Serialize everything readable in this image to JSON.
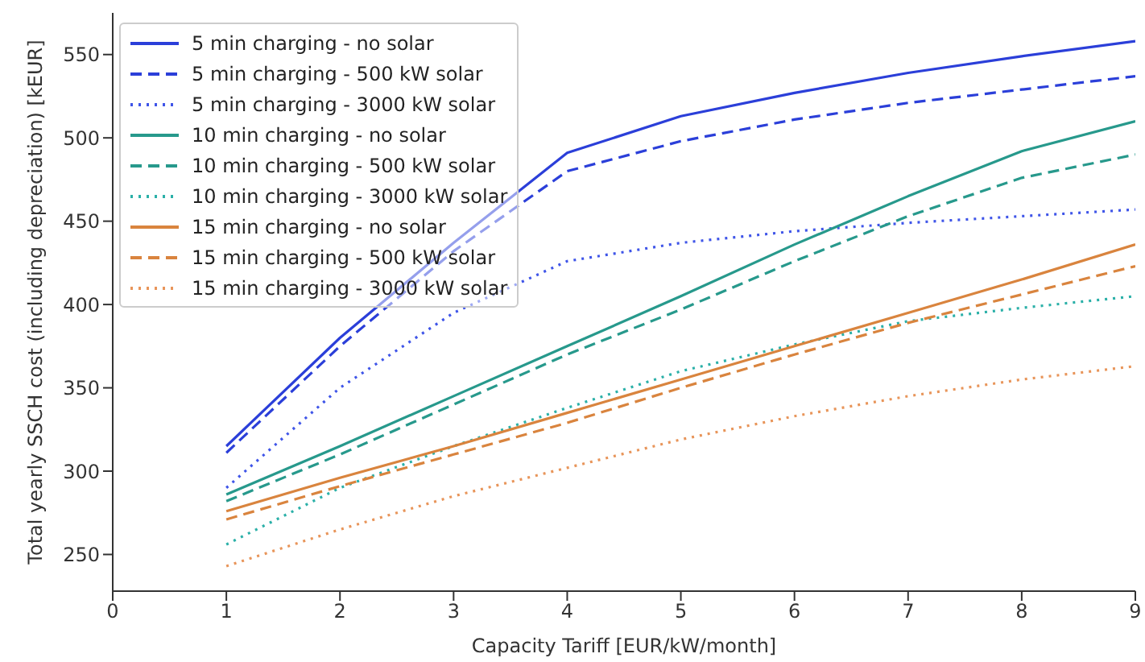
{
  "chart_data": {
    "type": "line",
    "xlabel": "Capacity Tariff [EUR/kW/month]",
    "ylabel": "Total yearly SSCH cost (including depreciation) [kEUR]",
    "x": [
      1,
      2,
      3,
      4,
      5,
      6,
      7,
      8,
      9
    ],
    "xlim": [
      0,
      9
    ],
    "xticks": [
      0,
      1,
      2,
      3,
      4,
      5,
      6,
      7,
      8,
      9
    ],
    "ylim": [
      228,
      575
    ],
    "yticks": [
      250,
      300,
      350,
      400,
      450,
      500,
      550
    ],
    "grid": false,
    "legend": "top left",
    "marker": "none",
    "series": [
      {
        "name": "5 min charging - no solar",
        "color": "#2b3fd9",
        "line_style": "solid",
        "values": [
          315,
          380,
          437,
          491,
          513,
          527,
          539,
          549,
          558
        ]
      },
      {
        "name": "5 min charging - 500 kW solar",
        "color": "#2b3fd9",
        "line_style": "dashed",
        "values": [
          311,
          375,
          432,
          480,
          498,
          511,
          521,
          529,
          537
        ]
      },
      {
        "name": "5 min charging - 3000 kW solar",
        "color": "#3f55e8",
        "line_style": "dotted",
        "values": [
          290,
          350,
          395,
          426,
          437,
          444,
          449,
          453,
          457
        ]
      },
      {
        "name": "10 min charging - no solar",
        "color": "#27998c",
        "line_style": "solid",
        "values": [
          286,
          315,
          345,
          375,
          405,
          436,
          465,
          492,
          510
        ]
      },
      {
        "name": "10 min charging - 500 kW solar",
        "color": "#27998c",
        "line_style": "dashed",
        "values": [
          282,
          310,
          340,
          370,
          397,
          426,
          453,
          476,
          490
        ]
      },
      {
        "name": "10 min charging - 3000 kW solar",
        "color": "#2bb0a8",
        "line_style": "dotted",
        "values": [
          256,
          290,
          315,
          338,
          360,
          376,
          390,
          398,
          405
        ]
      },
      {
        "name": "15 min charging - no solar",
        "color": "#d9843e",
        "line_style": "solid",
        "values": [
          276,
          296,
          315,
          335,
          355,
          375,
          395,
          415,
          436
        ]
      },
      {
        "name": "15 min charging - 500 kW solar",
        "color": "#d9843e",
        "line_style": "dashed",
        "values": [
          271,
          291,
          310,
          329,
          350,
          370,
          389,
          406,
          423
        ]
      },
      {
        "name": "15 min charging - 3000 kW solar",
        "color": "#e8955a",
        "line_style": "dotted",
        "values": [
          243,
          265,
          285,
          302,
          319,
          333,
          345,
          355,
          363
        ]
      }
    ]
  }
}
